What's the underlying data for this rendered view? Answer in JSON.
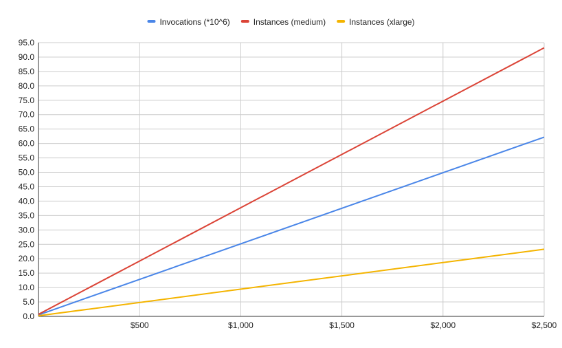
{
  "chart_data": {
    "type": "line",
    "title": "",
    "xlabel": "",
    "ylabel": "",
    "x": [
      0,
      2500
    ],
    "xlim": [
      0,
      2500
    ],
    "ylim": [
      0,
      95
    ],
    "x_ticks": [
      500,
      1000,
      1500,
      2000,
      2500
    ],
    "x_tick_labels": [
      "$500",
      "$1,000",
      "$1,500",
      "$2,000",
      "$2,500"
    ],
    "y_ticks": [
      0,
      5,
      10,
      15,
      20,
      25,
      30,
      35,
      40,
      45,
      50,
      55,
      60,
      65,
      70,
      75,
      80,
      85,
      90,
      95
    ],
    "y_tick_labels": [
      "0.0",
      "5.0",
      "10.0",
      "15.0",
      "20.0",
      "25.0",
      "30.0",
      "35.0",
      "40.0",
      "45.0",
      "50.0",
      "55.0",
      "60.0",
      "65.0",
      "70.0",
      "75.0",
      "80.0",
      "85.0",
      "90.0",
      "95.0"
    ],
    "grid": true,
    "legend_position": "top",
    "series": [
      {
        "name": "Invocations (*10^6)",
        "color": "#4a86e8",
        "values": [
          0.5,
          62.2
        ]
      },
      {
        "name": "Instances (medium)",
        "color": "#db4437",
        "values": [
          0.7,
          93.2
        ]
      },
      {
        "name": "Instances (xlarge)",
        "color": "#f4b400",
        "values": [
          0.2,
          23.3
        ]
      }
    ]
  }
}
